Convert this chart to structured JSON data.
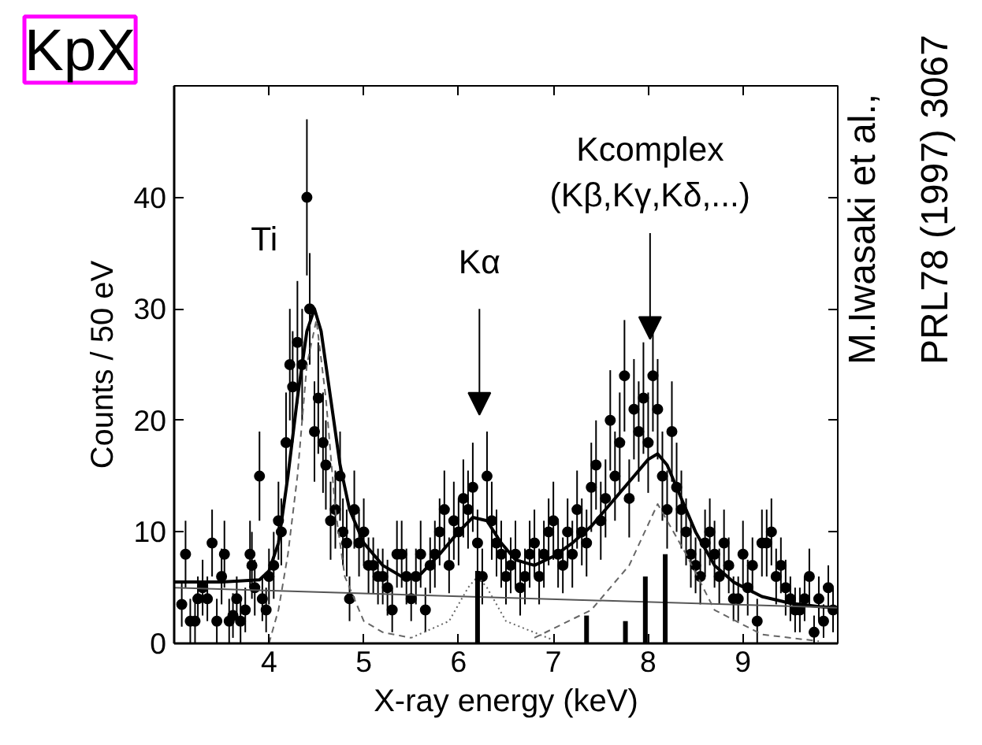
{
  "chart_data": {
    "type": "scatter",
    "title": "KpX",
    "xlabel": "X-ray energy (keV)",
    "ylabel": "Counts / 50 eV",
    "xlim": [
      3.0,
      10.0
    ],
    "ylim": [
      0,
      50
    ],
    "xticks": [
      4,
      5,
      6,
      7,
      8,
      9
    ],
    "yticks": [
      0,
      10,
      20,
      30,
      40
    ],
    "grid": false,
    "series": [
      {
        "marker": "circle",
        "color": "#000000",
        "x": [
          3.08,
          3.12,
          3.17,
          3.22,
          3.25,
          3.3,
          3.35,
          3.4,
          3.45,
          3.5,
          3.53,
          3.58,
          3.62,
          3.66,
          3.7,
          3.75,
          3.8,
          3.82,
          3.85,
          3.9,
          3.93,
          3.97,
          4.0,
          4.05,
          4.1,
          4.13,
          4.18,
          4.22,
          4.25,
          4.3,
          4.35,
          4.4,
          4.43,
          4.48,
          4.52,
          4.57,
          4.6,
          4.65,
          4.7,
          4.75,
          4.78,
          4.82,
          4.85,
          4.9,
          4.95,
          5.0,
          5.05,
          5.1,
          5.15,
          5.2,
          5.25,
          5.3,
          5.35,
          5.4,
          5.45,
          5.5,
          5.55,
          5.6,
          5.65,
          5.7,
          5.75,
          5.8,
          5.85,
          5.9,
          5.95,
          6.0,
          6.05,
          6.1,
          6.15,
          6.2,
          6.25,
          6.3,
          6.35,
          6.4,
          6.45,
          6.5,
          6.55,
          6.6,
          6.65,
          6.7,
          6.75,
          6.8,
          6.85,
          6.9,
          6.95,
          7.0,
          7.05,
          7.1,
          7.15,
          7.2,
          7.25,
          7.3,
          7.35,
          7.4,
          7.45,
          7.5,
          7.55,
          7.6,
          7.65,
          7.7,
          7.75,
          7.8,
          7.85,
          7.9,
          7.95,
          8.0,
          8.05,
          8.1,
          8.15,
          8.2,
          8.25,
          8.3,
          8.35,
          8.4,
          8.45,
          8.5,
          8.55,
          8.6,
          8.65,
          8.7,
          8.75,
          8.8,
          8.85,
          8.9,
          8.95,
          9.0,
          9.05,
          9.1,
          9.15,
          9.2,
          9.25,
          9.3,
          9.35,
          9.4,
          9.45,
          9.5,
          9.55,
          9.6,
          9.65,
          9.7,
          9.75,
          9.8,
          9.85,
          9.9,
          9.95
        ],
        "values": [
          3.5,
          8,
          2,
          2,
          4,
          5,
          4,
          9,
          2,
          6,
          8,
          2,
          2.5,
          4,
          2,
          3,
          8,
          7,
          5,
          15,
          4,
          3,
          6,
          7,
          11,
          10,
          18,
          25,
          23,
          27,
          25,
          40,
          30,
          19,
          22,
          18,
          16,
          11,
          12,
          15,
          10,
          9,
          4,
          12,
          9,
          10,
          7,
          7,
          6,
          6,
          5,
          3,
          8,
          8,
          6,
          4,
          6,
          8,
          3,
          7,
          8,
          10,
          12,
          7,
          11,
          10,
          13,
          12,
          14,
          9,
          6,
          15,
          11,
          9,
          8,
          6,
          7,
          8,
          5,
          6,
          8,
          9,
          6,
          8,
          10,
          11,
          8,
          7,
          10,
          8,
          12,
          10,
          9,
          14,
          16,
          11,
          13,
          20,
          15,
          18,
          24,
          13,
          21,
          19,
          22,
          18,
          24,
          21,
          15,
          12,
          19,
          14,
          12,
          10,
          8,
          7,
          6,
          9,
          10,
          8,
          6,
          9,
          7,
          4,
          4,
          8,
          5,
          7,
          2,
          9,
          9,
          10,
          6,
          7,
          5,
          4,
          3,
          3,
          4,
          6,
          1,
          4,
          2,
          5,
          3
        ],
        "errors": [
          2,
          3,
          2,
          2,
          2,
          2.5,
          2,
          3,
          2,
          2.5,
          3,
          2,
          2,
          2,
          2,
          2,
          3,
          3,
          2.5,
          4,
          2,
          2,
          2.5,
          3,
          3.5,
          3,
          4.5,
          5,
          5,
          5.5,
          5,
          7,
          5,
          4.5,
          5,
          4.5,
          4,
          3.5,
          3.5,
          4,
          3,
          3,
          2,
          3.5,
          3,
          3,
          2.5,
          2.5,
          2.5,
          2.5,
          2.5,
          2,
          3,
          3,
          2.5,
          2,
          2.5,
          3,
          2,
          2.5,
          3,
          3,
          3.5,
          2.5,
          3.5,
          3,
          3.5,
          3.5,
          4,
          3,
          2.5,
          4,
          3.5,
          3,
          3,
          2.5,
          2.5,
          3,
          2.5,
          2.5,
          3,
          3,
          2.5,
          3,
          3,
          3.5,
          3,
          2.5,
          3,
          3,
          3.5,
          3,
          3,
          4,
          4,
          3.5,
          3.5,
          4.5,
          4,
          4.5,
          5,
          3.5,
          4.5,
          4.5,
          5,
          4.5,
          5,
          4.5,
          4,
          3.5,
          4.5,
          4,
          3.5,
          3,
          3,
          2.5,
          2.5,
          3,
          3,
          3,
          2.5,
          3,
          2.5,
          2,
          2,
          3,
          2.5,
          2.5,
          2,
          3,
          3,
          3,
          2.5,
          2.5,
          2.5,
          2,
          2,
          2,
          2,
          2.5,
          1.5,
          2,
          1.5,
          2,
          2
        ]
      },
      {
        "type": "line",
        "color": "#000000",
        "x": [
          3.0,
          3.5,
          3.9,
          4.0,
          4.1,
          4.2,
          4.3,
          4.4,
          4.48,
          4.55,
          4.65,
          4.75,
          4.85,
          5.0,
          5.2,
          5.4,
          5.6,
          5.8,
          6.0,
          6.15,
          6.3,
          6.45,
          6.6,
          6.8,
          7.0,
          7.2,
          7.4,
          7.6,
          7.8,
          8.0,
          8.1,
          8.2,
          8.35,
          8.5,
          8.7,
          8.9,
          9.2,
          9.5,
          9.8,
          10.0
        ],
        "values": [
          5.5,
          5.5,
          5.7,
          6.5,
          9,
          15,
          22,
          28,
          30,
          28,
          22,
          16,
          12,
          9,
          7,
          6,
          6.2,
          8,
          10,
          11.3,
          11,
          9,
          7.5,
          7,
          7.8,
          9,
          10.5,
          12.5,
          14.5,
          16.5,
          17,
          16,
          13,
          10,
          7,
          5.5,
          4.2,
          3.6,
          3.3,
          3.2
        ]
      },
      {
        "type": "line",
        "color": "#555555",
        "x": [
          3.0,
          10.0
        ],
        "values": [
          5.0,
          3.2
        ]
      },
      {
        "type": "line",
        "color": "#666666",
        "line_style": "dashed",
        "x": [
          4.0,
          4.1,
          4.2,
          4.3,
          4.4,
          4.5,
          4.6,
          4.7,
          4.8,
          5.0,
          5.2,
          5.5
        ],
        "values": [
          0,
          3,
          8,
          15,
          25,
          29,
          22,
          12,
          6,
          2,
          1,
          0.5
        ]
      },
      {
        "type": "line",
        "color": "#666666",
        "line_style": "dotted",
        "x": [
          5.5,
          5.9,
          6.1,
          6.2,
          6.3,
          6.5,
          7.0
        ],
        "values": [
          0.5,
          2,
          5,
          6,
          5,
          2,
          0.3
        ]
      },
      {
        "type": "line",
        "color": "#666666",
        "line_style": "dashed",
        "x": [
          6.8,
          7.4,
          7.8,
          8.1,
          8.4,
          8.7,
          9.2,
          9.8
        ],
        "values": [
          0.5,
          3,
          7,
          12.5,
          8,
          3,
          0.8,
          0.2
        ]
      },
      {
        "type": "bar",
        "color": "#000000",
        "x": [
          6.2,
          7.35,
          7.76,
          7.97,
          8.18
        ],
        "values": [
          6.5,
          2.5,
          2,
          6,
          8
        ]
      }
    ],
    "annotations": [
      "Ti",
      "Kα",
      {
        "text": "Kcomplex (Kβ,Kγ,Kδ,...)",
        "x": 8.02,
        "y": 27.3
      },
      "M.Iwasaki et al.,",
      "PRL78 (1997) 3067"
    ]
  }
}
